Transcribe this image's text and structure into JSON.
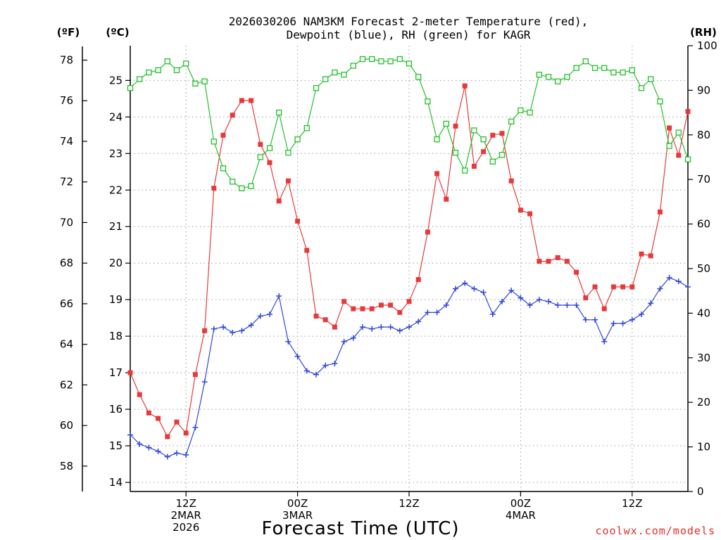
{
  "chart_data": {
    "type": "line",
    "title_lines": [
      "2026030206 NAM3KM Forecast 2-meter Temperature (red),",
      "Dewpoint (blue), RH (green) for KAGR"
    ],
    "xlabel": "Forecast Time (UTC)",
    "credit": "coolwx.com/models",
    "units": {
      "fahrenheit": "(ºF)",
      "celsius": "(ºC)",
      "rh": "(RH)"
    },
    "x_hours_range": [
      7,
      57
    ],
    "x_ticks": [
      {
        "hour": 12,
        "lines": [
          "12Z",
          "2MAR",
          "2026"
        ]
      },
      {
        "hour": 22,
        "lines": [
          "00Z",
          "3MAR"
        ]
      },
      {
        "hour": 32,
        "lines": [
          "12Z"
        ]
      },
      {
        "hour": 42,
        "lines": [
          "00Z",
          "4MAR"
        ]
      },
      {
        "hour": 52,
        "lines": [
          "12Z"
        ]
      }
    ],
    "celsius_ticks": [
      "14",
      "15",
      "16",
      "17",
      "18",
      "19",
      "20",
      "21",
      "22",
      "23",
      "24",
      "25"
    ],
    "fahrenheit_ticks": [
      "58",
      "60",
      "62",
      "64",
      "66",
      "68",
      "70",
      "72",
      "74",
      "76",
      "78"
    ],
    "rh_ticks": [
      "0",
      "10",
      "20",
      "30",
      "40",
      "50",
      "60",
      "70",
      "80",
      "90",
      "100"
    ],
    "axes": {
      "celsius_range": [
        13.75,
        25.95
      ],
      "rh_range": [
        0,
        100
      ]
    },
    "series": [
      {
        "name": "2-meter Temperature",
        "axis": "celsius",
        "color": "#e8393a",
        "marker": "filled-square",
        "values": [
          17.0,
          16.4,
          15.9,
          15.75,
          15.25,
          15.65,
          15.35,
          16.95,
          18.15,
          22.05,
          23.5,
          24.05,
          24.45,
          24.45,
          23.25,
          22.75,
          21.7,
          22.25,
          21.15,
          20.35,
          18.55,
          18.45,
          18.25,
          18.95,
          18.75,
          18.75,
          18.75,
          18.85,
          18.85,
          18.65,
          18.95,
          19.55,
          20.85,
          22.45,
          21.75,
          23.75,
          24.85,
          22.65,
          23.05,
          23.5,
          23.55,
          22.25,
          21.45,
          21.35,
          20.05,
          20.05,
          20.15,
          20.05,
          19.75,
          19.05,
          19.35,
          18.75,
          19.35,
          19.35,
          19.35,
          20.25,
          20.2,
          21.4,
          23.7,
          22.95,
          24.15
        ]
      },
      {
        "name": "Dewpoint",
        "axis": "celsius",
        "color": "#2f47d8",
        "marker": "plus",
        "values": [
          15.3,
          15.05,
          14.95,
          14.85,
          14.7,
          14.8,
          14.75,
          15.5,
          16.75,
          18.2,
          18.25,
          18.1,
          18.15,
          18.3,
          18.55,
          18.6,
          19.1,
          17.85,
          17.45,
          17.05,
          16.95,
          17.2,
          17.25,
          17.85,
          17.95,
          18.25,
          18.2,
          18.25,
          18.25,
          18.15,
          18.25,
          18.4,
          18.65,
          18.65,
          18.85,
          19.3,
          19.45,
          19.3,
          19.2,
          18.6,
          18.95,
          19.25,
          19.05,
          18.85,
          19.0,
          18.95,
          18.85,
          18.85,
          18.85,
          18.45,
          18.45,
          17.85,
          18.35,
          18.35,
          18.45,
          18.6,
          18.9,
          19.3,
          19.6,
          19.5,
          19.35
        ]
      },
      {
        "name": "RH",
        "axis": "rh",
        "color": "#22c02a",
        "marker": "open-square",
        "values": [
          90.5,
          92.5,
          94,
          94.5,
          96.5,
          94.5,
          96,
          91.5,
          92,
          78.5,
          72.5,
          69.5,
          68,
          68.5,
          75,
          77,
          85,
          76,
          79,
          81.5,
          90.5,
          92.5,
          94,
          93.5,
          95.5,
          97,
          97,
          96.5,
          96.5,
          97,
          96,
          93,
          87.5,
          79,
          82.5,
          76,
          72,
          81,
          79,
          74,
          75.5,
          83,
          85.5,
          85,
          93.5,
          93,
          92,
          93,
          95,
          96.5,
          95,
          95,
          94,
          94,
          94.5,
          90.5,
          92.5,
          87.5,
          77.5,
          80.5,
          74.5
        ]
      }
    ],
    "grid": true,
    "legend": "none"
  }
}
